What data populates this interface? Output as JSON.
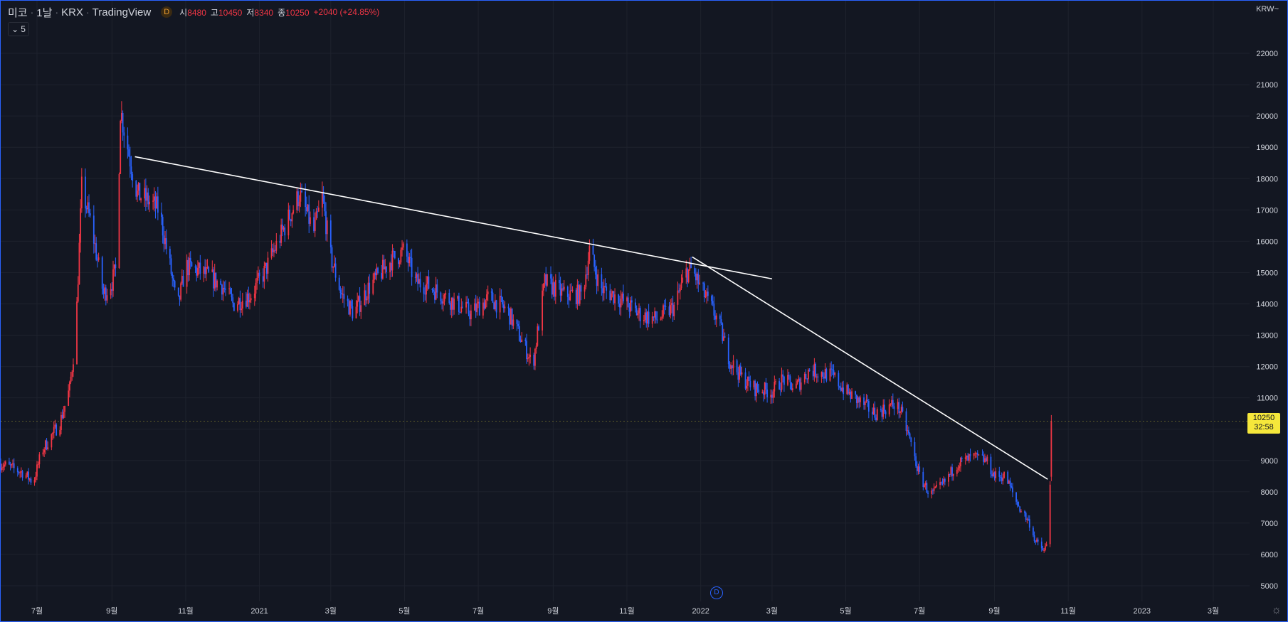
{
  "header": {
    "symbol_name": "미코",
    "interval": "1날",
    "exchange": "KRX",
    "source": "TradingView",
    "d_badge": "D",
    "open_label": "시",
    "open_value": "8480",
    "high_label": "고",
    "high_value": "10450",
    "low_label": "저",
    "low_value": "8340",
    "close_label": "종",
    "close_value": "10250",
    "change": "+2040 (+24.85%)",
    "collapse_count": "5",
    "currency": "KRW"
  },
  "last_price_tag": {
    "price": "10250",
    "countdown": "32:58"
  },
  "dividend_marker": "D",
  "colors": {
    "background": "#131722",
    "up": "#f23645",
    "down": "#2962ff",
    "grid": "#1e222d",
    "trendline": "#ffffff",
    "price_tag": "#f5e73b"
  },
  "chart_data": {
    "type": "candlestick",
    "title": "",
    "xlabel": "",
    "ylabel": "",
    "ylim": [
      4500,
      23000
    ],
    "yticks": [
      5000,
      6000,
      7000,
      8000,
      9000,
      10000,
      11000,
      12000,
      13000,
      14000,
      15000,
      16000,
      17000,
      18000,
      19000,
      20000,
      21000,
      22000
    ],
    "xticks": [
      {
        "label": "7월",
        "date": "2020-07-01"
      },
      {
        "label": "9월",
        "date": "2020-09-01"
      },
      {
        "label": "11월",
        "date": "2020-11-01"
      },
      {
        "label": "2021",
        "date": "2021-01-01"
      },
      {
        "label": "3월",
        "date": "2021-03-01"
      },
      {
        "label": "5월",
        "date": "2021-05-01"
      },
      {
        "label": "7월",
        "date": "2021-07-01"
      },
      {
        "label": "9월",
        "date": "2021-09-01"
      },
      {
        "label": "11월",
        "date": "2021-11-01"
      },
      {
        "label": "2022",
        "date": "2022-01-01"
      },
      {
        "label": "3월",
        "date": "2022-03-01"
      },
      {
        "label": "5월",
        "date": "2022-05-01"
      },
      {
        "label": "7월",
        "date": "2022-07-01"
      },
      {
        "label": "9월",
        "date": "2022-09-01"
      },
      {
        "label": "11월",
        "date": "2022-11-01"
      },
      {
        "label": "2023",
        "date": "2023-01-01"
      },
      {
        "label": "3월",
        "date": "2023-03-01"
      }
    ],
    "price_path": [
      [
        "2020-06-01",
        8900
      ],
      [
        "2020-06-20",
        8600
      ],
      [
        "2020-06-28",
        8300
      ],
      [
        "2020-07-05",
        9300
      ],
      [
        "2020-07-20",
        10200
      ],
      [
        "2020-07-28",
        11300
      ],
      [
        "2020-08-02",
        13000
      ],
      [
        "2020-08-07",
        17700
      ],
      [
        "2020-08-15",
        16500
      ],
      [
        "2020-08-25",
        14300
      ],
      [
        "2020-09-01",
        14700
      ],
      [
        "2020-09-05",
        15200
      ],
      [
        "2020-09-08",
        20200
      ],
      [
        "2020-09-15",
        18800
      ],
      [
        "2020-09-22",
        17500
      ],
      [
        "2020-10-01",
        17300
      ],
      [
        "2020-10-10",
        17000
      ],
      [
        "2020-10-20",
        15000
      ],
      [
        "2020-10-25",
        13800
      ],
      [
        "2020-11-01",
        15200
      ],
      [
        "2020-11-15",
        15000
      ],
      [
        "2020-12-01",
        14600
      ],
      [
        "2020-12-10",
        14000
      ],
      [
        "2020-12-25",
        14300
      ],
      [
        "2021-01-05",
        15000
      ],
      [
        "2021-01-20",
        16300
      ],
      [
        "2021-02-03",
        17500
      ],
      [
        "2021-02-15",
        16300
      ],
      [
        "2021-02-22",
        17400
      ],
      [
        "2021-03-01",
        15500
      ],
      [
        "2021-03-10",
        14300
      ],
      [
        "2021-03-20",
        13700
      ],
      [
        "2021-04-01",
        14500
      ],
      [
        "2021-04-20",
        15400
      ],
      [
        "2021-05-01",
        15700
      ],
      [
        "2021-05-10",
        14700
      ],
      [
        "2021-05-20",
        14600
      ],
      [
        "2021-06-05",
        14200
      ],
      [
        "2021-06-25",
        13700
      ],
      [
        "2021-07-10",
        14200
      ],
      [
        "2021-07-25",
        13800
      ],
      [
        "2021-08-10",
        12500
      ],
      [
        "2021-08-15",
        12000
      ],
      [
        "2021-08-25",
        14700
      ],
      [
        "2021-09-10",
        14300
      ],
      [
        "2021-09-25",
        14300
      ],
      [
        "2021-10-01",
        15700
      ],
      [
        "2021-10-10",
        14500
      ],
      [
        "2021-10-25",
        14200
      ],
      [
        "2021-11-10",
        13700
      ],
      [
        "2021-11-25",
        13500
      ],
      [
        "2021-12-10",
        13900
      ],
      [
        "2021-12-20",
        15000
      ],
      [
        "2021-12-25",
        15100
      ],
      [
        "2022-01-01",
        14500
      ],
      [
        "2022-01-15",
        13500
      ],
      [
        "2022-01-25",
        12200
      ],
      [
        "2022-02-05",
        11600
      ],
      [
        "2022-02-15",
        11300
      ],
      [
        "2022-03-01",
        11200
      ],
      [
        "2022-03-10",
        11600
      ],
      [
        "2022-03-20",
        11300
      ],
      [
        "2022-04-01",
        11900
      ],
      [
        "2022-04-20",
        11700
      ],
      [
        "2022-05-01",
        11200
      ],
      [
        "2022-05-15",
        10800
      ],
      [
        "2022-05-25",
        10500
      ],
      [
        "2022-06-10",
        10800
      ],
      [
        "2022-06-15",
        10600
      ],
      [
        "2022-06-22",
        9800
      ],
      [
        "2022-07-01",
        8500
      ],
      [
        "2022-07-10",
        7900
      ],
      [
        "2022-07-20",
        8200
      ],
      [
        "2022-08-01",
        8900
      ],
      [
        "2022-08-15",
        9100
      ],
      [
        "2022-08-25",
        9000
      ],
      [
        "2022-09-01",
        8500
      ],
      [
        "2022-09-10",
        8500
      ],
      [
        "2022-09-20",
        7600
      ],
      [
        "2022-09-30",
        7000
      ],
      [
        "2022-10-05",
        6400
      ],
      [
        "2022-10-12",
        6100
      ],
      [
        "2022-10-14",
        6300
      ],
      [
        "2022-10-17",
        8300
      ],
      [
        "2022-10-18",
        10250
      ]
    ],
    "trendlines": [
      {
        "from": [
          "2020-09-20",
          18700
        ],
        "to": [
          "2022-03-01",
          14800
        ]
      },
      {
        "from": [
          "2021-12-25",
          15500
        ],
        "to": [
          "2022-10-15",
          8400
        ]
      }
    ]
  }
}
